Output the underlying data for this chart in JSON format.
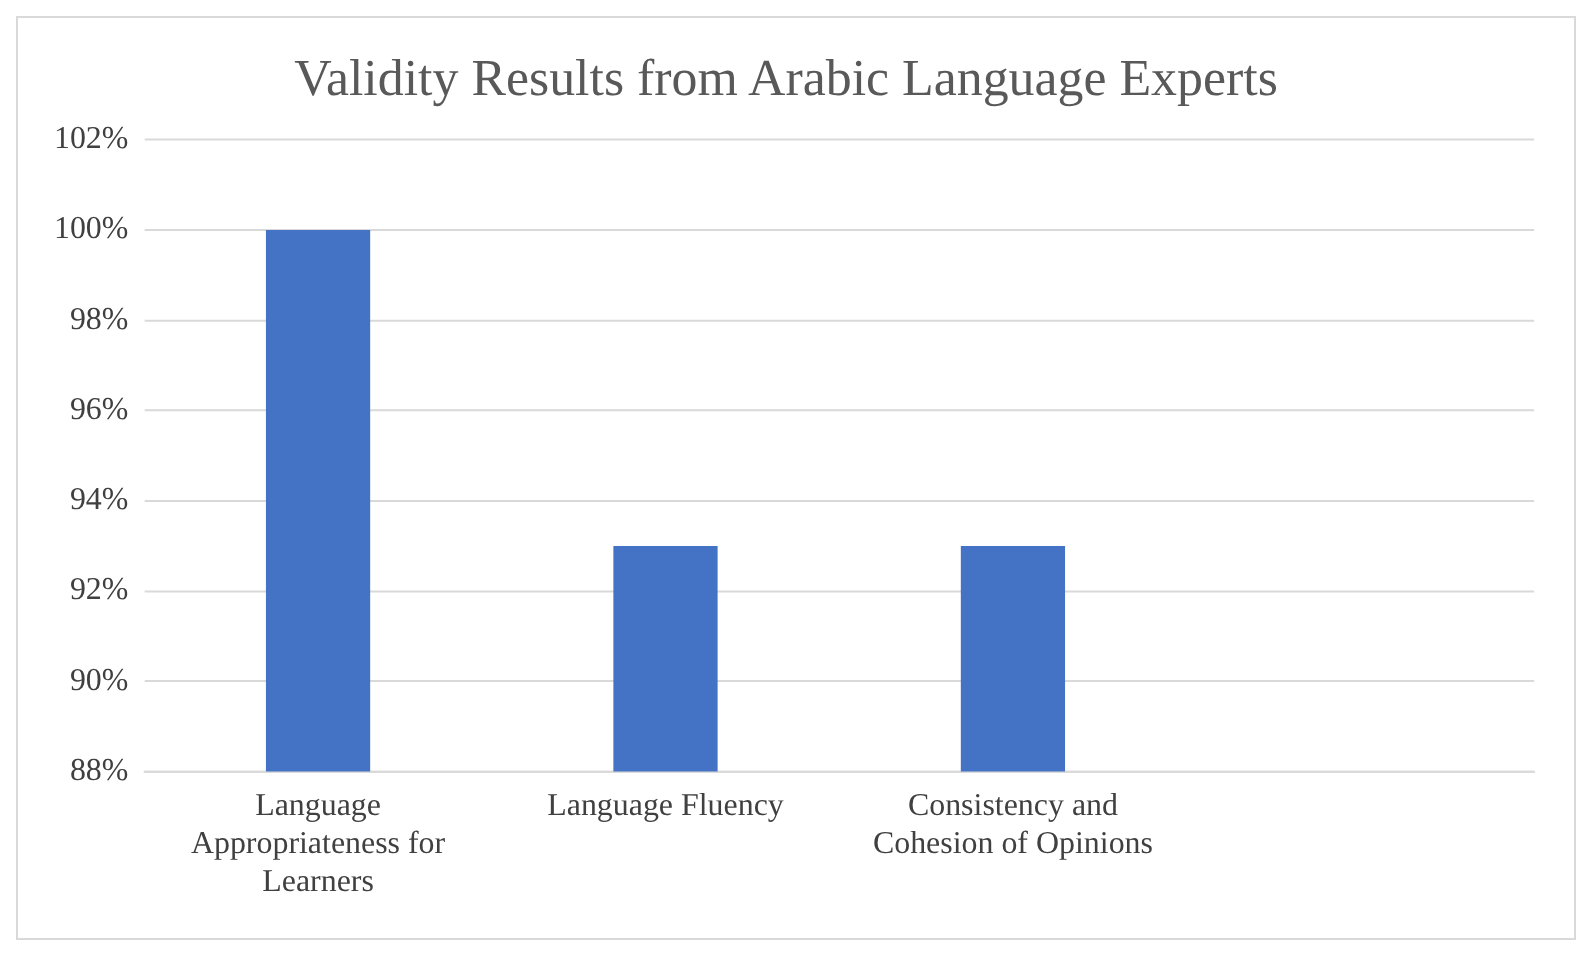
{
  "chart_data": {
    "type": "bar",
    "title": "Validity Results from Arabic Language Experts",
    "categories": [
      "Language Appropriateness for Learners",
      "Language Fluency",
      "Consistency and Cohesion of Opinions",
      null
    ],
    "values": [
      100,
      93,
      93,
      null
    ],
    "color": "#4472c4",
    "ylim": [
      88,
      102
    ],
    "yticks": [
      {
        "value": 88,
        "label": "88%"
      },
      {
        "value": 90,
        "label": "90%"
      },
      {
        "value": 92,
        "label": "92%"
      },
      {
        "value": 94,
        "label": "94%"
      },
      {
        "value": 96,
        "label": "96%"
      },
      {
        "value": 98,
        "label": "98%"
      },
      {
        "value": 100,
        "label": "100%"
      },
      {
        "value": 102,
        "label": "102%"
      }
    ],
    "grid": "y",
    "legend": false
  }
}
